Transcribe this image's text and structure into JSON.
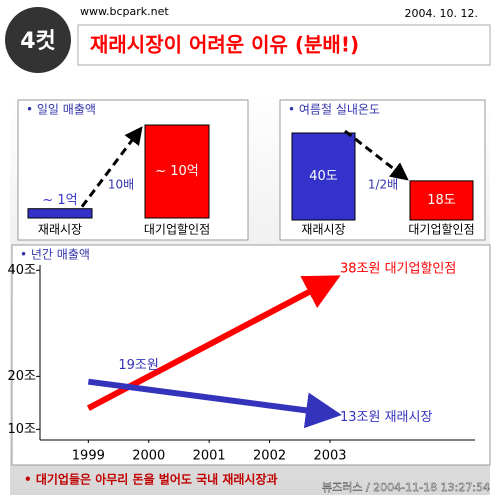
{
  "header": {
    "logo": "4컷",
    "site": "www.bcpark.net",
    "date": "2004. 10. 12.",
    "title": "재래시장이 어려운 이유 (분배!)"
  },
  "chart_data": [
    {
      "type": "bar",
      "title": "• 일일 매출액",
      "categories": [
        "재래시장",
        "대기업할인점"
      ],
      "values": [
        1,
        10
      ],
      "value_labels": [
        "~ 1억",
        "~ 10억"
      ],
      "colors": [
        "#3333cc",
        "#ff0000"
      ],
      "annotation": "10배"
    },
    {
      "type": "bar",
      "title": "• 여름철 실내온도",
      "categories": [
        "재래시장",
        "대기업할인점"
      ],
      "values": [
        40,
        18
      ],
      "value_labels": [
        "40도",
        "18도"
      ],
      "colors": [
        "#3333cc",
        "#ff0000"
      ],
      "annotation": "1/2배"
    },
    {
      "type": "line",
      "title": "• 년간 매출액",
      "x": [
        1999,
        2003
      ],
      "xticks": [
        1999,
        2000,
        2001,
        2002,
        2003
      ],
      "xlim": [
        1998.2,
        2005.4
      ],
      "ylim": [
        8,
        41
      ],
      "yticks": [
        {
          "value": 10,
          "label": "10조"
        },
        {
          "value": 20,
          "label": "20조"
        },
        {
          "value": 40,
          "label": "40조"
        }
      ],
      "series": [
        {
          "name": "38조원 대기업할인점",
          "color": "#ff0000",
          "values": [
            14,
            38
          ]
        },
        {
          "name": "13조원 재래시장",
          "color": "#3333bb",
          "values": [
            19,
            13
          ],
          "start_label": "19조원"
        }
      ]
    }
  ],
  "footer": {
    "text": "• 대기업들은 아무리 돈을 벌어도 국내 재래시장과",
    "stamp": "뷰즈러스 / 2004-11-18 13:27:54"
  }
}
